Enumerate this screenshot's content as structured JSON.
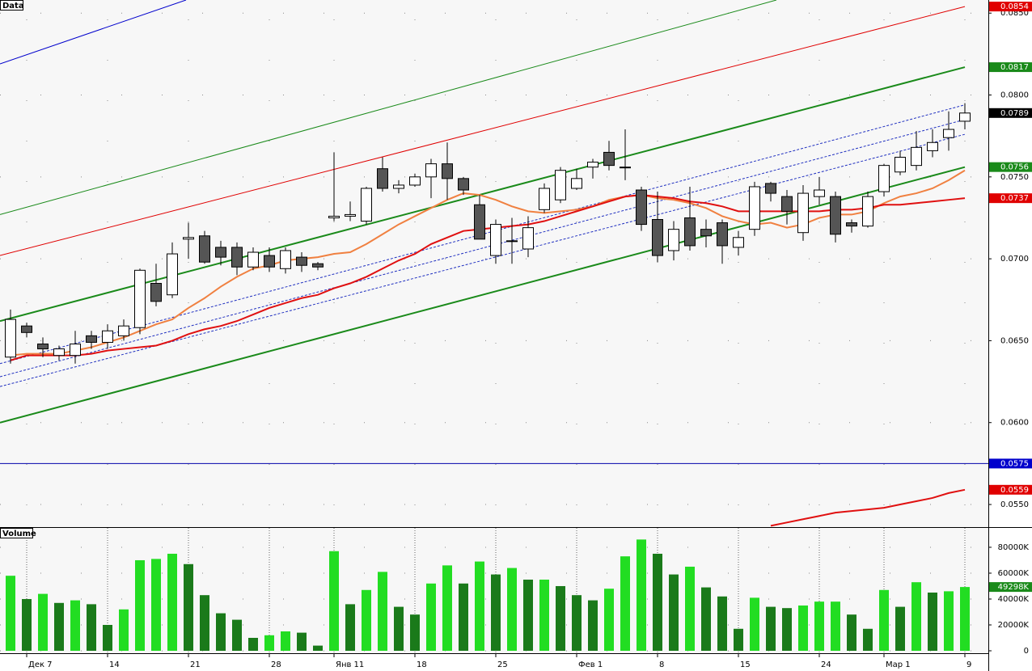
{
  "chart_data": [
    {
      "type": "candlestick",
      "title": "Data",
      "categories": [
        null,
        "Дек 7",
        null,
        null,
        null,
        null,
        "14",
        null,
        null,
        null,
        null,
        "21",
        null,
        null,
        null,
        null,
        "28",
        null,
        null,
        null,
        "Янв 11",
        null,
        null,
        null,
        null,
        "18",
        null,
        null,
        null,
        null,
        "25",
        null,
        null,
        null,
        null,
        "Фев 1",
        null,
        null,
        null,
        null,
        "8",
        null,
        null,
        null,
        null,
        "15",
        null,
        null,
        null,
        null,
        "24",
        null,
        null,
        null,
        "Мар 1",
        null,
        null,
        null,
        null,
        "9"
      ],
      "open": [
        0.064,
        0.0659,
        0.0648,
        0.0641,
        0.0641,
        0.0653,
        0.0649,
        0.0653,
        0.0658,
        0.0685,
        0.0678,
        0.0712,
        0.0714,
        0.0707,
        0.0707,
        0.0695,
        0.0702,
        0.0694,
        0.0701,
        0.0697,
        0.0725,
        0.0726,
        0.0723,
        0.0755,
        0.0743,
        0.0745,
        0.075,
        0.0758,
        0.0749,
        0.0733,
        0.0702,
        0.0711,
        0.0706,
        0.073,
        0.0736,
        0.0743,
        0.0756,
        0.0765,
        0.0756,
        0.0742,
        0.0724,
        0.0705,
        0.0725,
        0.0718,
        0.0722,
        0.0707,
        0.0718,
        0.0746,
        0.0738,
        0.0716,
        0.0738,
        0.0738,
        0.0722,
        0.072,
        0.0741,
        0.0753,
        0.0757,
        0.0766,
        0.0774,
        0.0784
      ],
      "high": [
        0.0669,
        0.0661,
        0.0652,
        0.0647,
        0.0656,
        0.0656,
        0.066,
        0.0663,
        0.0694,
        0.0697,
        0.071,
        0.0722,
        0.0717,
        0.0711,
        0.071,
        0.0707,
        0.0707,
        0.0707,
        0.0704,
        0.0698,
        0.0765,
        0.0735,
        0.0744,
        0.0762,
        0.0748,
        0.0752,
        0.0761,
        0.0771,
        0.075,
        0.0739,
        0.0724,
        0.0725,
        0.0726,
        0.0746,
        0.0756,
        0.0755,
        0.0761,
        0.0772,
        0.0779,
        0.0744,
        0.0741,
        0.0723,
        0.0744,
        0.0724,
        0.0724,
        0.0717,
        0.0747,
        0.0747,
        0.0742,
        0.0745,
        0.075,
        0.0741,
        0.0724,
        0.0741,
        0.0758,
        0.0766,
        0.0778,
        0.0779,
        0.079,
        0.0795
      ],
      "low": [
        0.0636,
        0.0652,
        0.064,
        0.0638,
        0.0636,
        0.0645,
        0.0645,
        0.065,
        0.0654,
        0.0671,
        0.0676,
        0.07,
        0.0697,
        0.0696,
        0.069,
        0.0693,
        0.0692,
        0.0691,
        0.0692,
        0.0693,
        0.0723,
        0.0723,
        0.0721,
        0.0741,
        0.074,
        0.0744,
        0.0737,
        0.0736,
        0.0739,
        0.0712,
        0.0697,
        0.0697,
        0.0701,
        0.0728,
        0.0734,
        0.0742,
        0.0749,
        0.0754,
        0.0748,
        0.0717,
        0.0698,
        0.0699,
        0.0705,
        0.0707,
        0.0697,
        0.0702,
        0.0714,
        0.0735,
        0.0721,
        0.0711,
        0.0733,
        0.071,
        0.0716,
        0.0719,
        0.0738,
        0.0751,
        0.0754,
        0.0762,
        0.0766,
        0.0779
      ],
      "close": [
        0.0663,
        0.0655,
        0.0645,
        0.0645,
        0.0648,
        0.0649,
        0.0656,
        0.0659,
        0.0693,
        0.0674,
        0.0703,
        0.0713,
        0.0698,
        0.0701,
        0.0695,
        0.0704,
        0.0695,
        0.0705,
        0.0696,
        0.0695,
        0.0726,
        0.0727,
        0.0743,
        0.0743,
        0.0745,
        0.075,
        0.0758,
        0.0749,
        0.0742,
        0.0712,
        0.0721,
        0.0711,
        0.0719,
        0.0743,
        0.0754,
        0.0749,
        0.0759,
        0.0757,
        0.0756,
        0.0721,
        0.0702,
        0.0718,
        0.0708,
        0.0714,
        0.0708,
        0.0713,
        0.0744,
        0.074,
        0.0729,
        0.074,
        0.0742,
        0.0715,
        0.072,
        0.0738,
        0.0757,
        0.0762,
        0.0768,
        0.0771,
        0.0779,
        0.0789
      ],
      "up_color": "#ffffff",
      "down_color": "#555555",
      "series": [
        {
          "color": "#f08040",
          "values": [
            0.0641,
            0.0642,
            0.0642,
            0.0642,
            0.0644,
            0.0646,
            0.0649,
            0.0652,
            0.0656,
            0.066,
            0.0663,
            0.067,
            0.0676,
            0.0683,
            0.0689,
            0.0694,
            0.0696,
            0.0699,
            0.07,
            0.0701,
            0.0703,
            0.0704,
            0.0709,
            0.0715,
            0.0721,
            0.0726,
            0.0731,
            0.0736,
            0.074,
            0.0739,
            0.0736,
            0.0732,
            0.0729,
            0.0728,
            0.0729,
            0.073,
            0.0732,
            0.0736,
            0.0738,
            0.0739,
            0.0737,
            0.0736,
            0.0734,
            0.0731,
            0.0726,
            0.0723,
            0.0721,
            0.0722,
            0.0719,
            0.0721,
            0.0725,
            0.0727,
            0.0727,
            0.0729,
            0.0734,
            0.0738,
            0.074,
            0.0743,
            0.0748,
            0.0754
          ]
        },
        {
          "color": "#e01010",
          "values": [
            0.0638,
            0.0641,
            0.0641,
            0.0641,
            0.0641,
            0.0642,
            0.0644,
            0.0645,
            0.0646,
            0.0647,
            0.065,
            0.0654,
            0.0657,
            0.0659,
            0.0662,
            0.0666,
            0.067,
            0.0673,
            0.0676,
            0.0678,
            0.0682,
            0.0685,
            0.0689,
            0.0694,
            0.0699,
            0.0703,
            0.0709,
            0.0713,
            0.0717,
            0.0718,
            0.0719,
            0.072,
            0.0721,
            0.0723,
            0.0726,
            0.0729,
            0.0732,
            0.0735,
            0.0738,
            0.0739,
            0.0738,
            0.0737,
            0.0735,
            0.0734,
            0.0732,
            0.0729,
            0.0729,
            0.0729,
            0.0729,
            0.0729,
            0.0729,
            0.073,
            0.073,
            0.0731,
            0.0733,
            0.0733,
            0.0734,
            0.0735,
            0.0736,
            0.0737
          ]
        },
        {
          "color": "#e01010",
          "values": [
            null,
            null,
            null,
            null,
            null,
            null,
            null,
            null,
            null,
            null,
            null,
            null,
            null,
            null,
            null,
            null,
            null,
            null,
            null,
            null,
            null,
            null,
            null,
            null,
            null,
            null,
            null,
            null,
            null,
            null,
            null,
            null,
            null,
            null,
            null,
            null,
            null,
            null,
            null,
            null,
            null,
            null,
            null,
            null,
            null,
            null,
            null,
            0.0537,
            0.0539,
            0.0541,
            0.0543,
            0.0545,
            0.0546,
            0.0547,
            0.0548,
            0.055,
            0.0552,
            0.0554,
            0.0557,
            0.0559
          ]
        }
      ],
      "overlays": [
        {
          "color": "#1a8a1a",
          "width": 2,
          "dashed": false,
          "x": [
            -0.65,
            59
          ],
          "values": [
            0.06,
            0.0756
          ]
        },
        {
          "color": "#1a8a1a",
          "width": 2,
          "dashed": false,
          "x": [
            -0.65,
            59
          ],
          "values": [
            0.0662,
            0.0817
          ]
        },
        {
          "color": "#1a8a1a",
          "width": 1,
          "dashed": false,
          "x": [
            -0.65,
            47.35
          ],
          "values": [
            0.0727,
            0.0858
          ]
        },
        {
          "color": "#e00000",
          "width": 1,
          "dashed": false,
          "x": [
            -0.65,
            59
          ],
          "values": [
            0.0702,
            0.0854
          ]
        },
        {
          "color": "#0000cc",
          "width": 1,
          "dashed": false,
          "x": [
            -0.65,
            10.85
          ],
          "values": [
            0.0819,
            0.0858
          ]
        },
        {
          "color": "#2030c0",
          "width": 1,
          "dashed": true,
          "x": [
            -0.65,
            59
          ],
          "values": [
            0.0636,
            0.0794
          ]
        },
        {
          "color": "#2030c0",
          "width": 1,
          "dashed": true,
          "x": [
            -0.65,
            59
          ],
          "values": [
            0.0628,
            0.0785
          ]
        },
        {
          "color": "#2030c0",
          "width": 1,
          "dashed": true,
          "x": [
            -0.65,
            59
          ],
          "values": [
            0.0622,
            0.0776
          ]
        },
        {
          "color": "#0000aa",
          "width": 1,
          "dashed": false,
          "x": [
            -0.65,
            60.45
          ],
          "values": [
            0.0575,
            0.0575
          ]
        }
      ],
      "ylim": [
        0.05362,
        0.0858
      ],
      "yticks": [
        {
          "value": 0.085,
          "label": "0.0850"
        },
        {
          "value": 0.08,
          "label": "0.0800"
        },
        {
          "value": 0.075,
          "label": "0.0750"
        },
        {
          "value": 0.07,
          "label": "0.0700"
        },
        {
          "value": 0.065,
          "label": "0.0650"
        },
        {
          "value": 0.06,
          "label": "0.0600"
        },
        {
          "value": 0.055,
          "label": "0.0550"
        }
      ],
      "markers": [
        {
          "value": 0.0854,
          "color": "#e00000"
        },
        {
          "value": 0.0817,
          "color": "#1a8a1a"
        },
        {
          "value": 0.0789,
          "color": "#000000"
        },
        {
          "value": 0.0756,
          "color": "#1a8a1a"
        },
        {
          "value": 0.0737,
          "color": "#e00000"
        },
        {
          "value": 0.0575,
          "color": "#0000cc"
        },
        {
          "value": 0.0559,
          "color": "#e00000"
        }
      ],
      "grid": true
    },
    {
      "type": "bar",
      "title": "Volume",
      "values": [
        58000,
        40000,
        44000,
        37000,
        39000,
        36000,
        20000,
        32000,
        70000,
        71000,
        75000,
        67000,
        43000,
        29000,
        24000,
        10000,
        12000,
        15000,
        14000,
        4000,
        77000,
        36000,
        47000,
        61000,
        34000,
        28000,
        52000,
        66000,
        52000,
        69000,
        59000,
        64000,
        55000,
        55000,
        50000,
        43000,
        39000,
        48000,
        73000,
        86000,
        75000,
        59000,
        65000,
        49000,
        42000,
        17000,
        41000,
        34000,
        33000,
        35000,
        38000,
        38000,
        28000,
        17000,
        47000,
        34000,
        53000,
        45000,
        46000,
        49298
      ],
      "up_color": "#22dd22",
      "down_color": "#1a7a1a",
      "ylim": [
        0,
        95600
      ],
      "yticks": [
        {
          "value": 80000,
          "label": "80000K"
        },
        {
          "value": 60000,
          "label": "60000K"
        },
        {
          "value": 40000,
          "label": "40000K"
        },
        {
          "value": 20000,
          "label": "20000K"
        },
        0
      ],
      "markers": [
        {
          "value": 49298,
          "label": "49298K",
          "color": "#1a8a1a"
        }
      ],
      "grid": true
    }
  ]
}
